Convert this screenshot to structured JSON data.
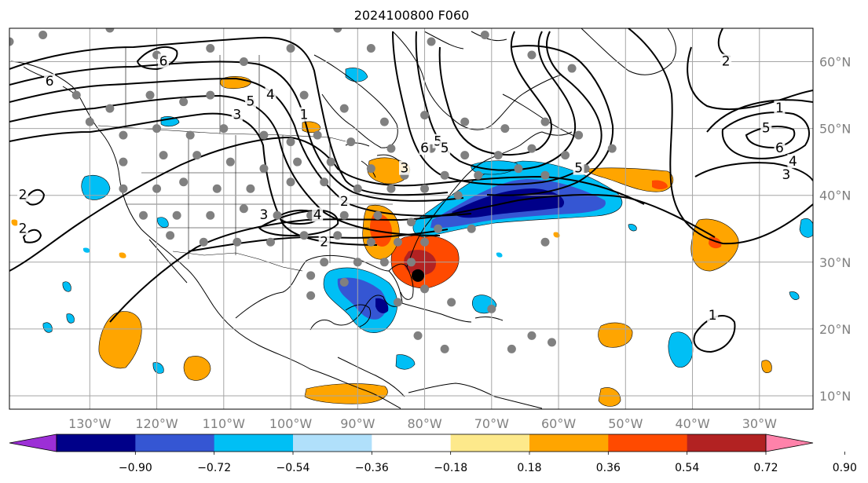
{
  "title": "2024100800 F060",
  "map": {
    "lon_range": [
      -142,
      -22
    ],
    "lat_range": [
      8,
      65
    ],
    "lon_ticks": [
      {
        "value": -130,
        "label": "130°W"
      },
      {
        "value": -120,
        "label": "120°W"
      },
      {
        "value": -110,
        "label": "110°W"
      },
      {
        "value": -100,
        "label": "100°W"
      },
      {
        "value": -90,
        "label": "90°W"
      },
      {
        "value": -80,
        "label": "80°W"
      },
      {
        "value": -70,
        "label": "70°W"
      },
      {
        "value": -60,
        "label": "60°W"
      },
      {
        "value": -50,
        "label": "50°W"
      },
      {
        "value": -40,
        "label": "40°W"
      },
      {
        "value": -30,
        "label": "30°W"
      }
    ],
    "lat_ticks": [
      {
        "value": 10,
        "label": "10°N"
      },
      {
        "value": 20,
        "label": "20°N"
      },
      {
        "value": 30,
        "label": "30°N"
      },
      {
        "value": 40,
        "label": "40°N"
      },
      {
        "value": 50,
        "label": "50°N"
      },
      {
        "value": 60,
        "label": "60°N"
      }
    ],
    "contour_labels": [
      {
        "text": "6",
        "lon": -136,
        "lat": 57
      },
      {
        "text": "6",
        "lon": -119,
        "lat": 60
      },
      {
        "text": "5",
        "lon": -106,
        "lat": 54
      },
      {
        "text": "4",
        "lon": -103,
        "lat": 55
      },
      {
        "text": "3",
        "lon": -108,
        "lat": 52
      },
      {
        "text": "1",
        "lon": -98,
        "lat": 52
      },
      {
        "text": "2",
        "lon": -92,
        "lat": 39
      },
      {
        "text": "3",
        "lon": -104,
        "lat": 37
      },
      {
        "text": "4",
        "lon": -96,
        "lat": 37
      },
      {
        "text": "2",
        "lon": -95,
        "lat": 33
      },
      {
        "text": "2",
        "lon": -140,
        "lat": 40
      },
      {
        "text": "2",
        "lon": -140,
        "lat": 35
      },
      {
        "text": "3",
        "lon": -83,
        "lat": 44
      },
      {
        "text": "6",
        "lon": -80,
        "lat": 47
      },
      {
        "text": "5",
        "lon": -78,
        "lat": 48
      },
      {
        "text": "5",
        "lon": -77,
        "lat": 47
      },
      {
        "text": "2",
        "lon": -35,
        "lat": 60
      },
      {
        "text": "1",
        "lon": -27,
        "lat": 53
      },
      {
        "text": "5",
        "lon": -29,
        "lat": 50
      },
      {
        "text": "6",
        "lon": -27,
        "lat": 47
      },
      {
        "text": "4",
        "lon": -25,
        "lat": 45
      },
      {
        "text": "3",
        "lon": -26,
        "lat": 43
      },
      {
        "text": "1",
        "lon": -37,
        "lat": 22
      },
      {
        "text": "5",
        "lon": -57,
        "lat": 44
      }
    ],
    "obs_points": [
      [
        -142,
        63
      ],
      [
        -137,
        64
      ],
      [
        -127,
        65
      ],
      [
        -120,
        61
      ],
      [
        -112,
        62
      ],
      [
        -107,
        60
      ],
      [
        -100,
        62
      ],
      [
        -93,
        65
      ],
      [
        -88,
        62
      ],
      [
        -79,
        63
      ],
      [
        -71,
        64
      ],
      [
        -64,
        61
      ],
      [
        -58,
        59
      ],
      [
        -132,
        55
      ],
      [
        -127,
        53
      ],
      [
        -121,
        55
      ],
      [
        -116,
        54
      ],
      [
        -112,
        55
      ],
      [
        -106,
        54
      ],
      [
        -98,
        55
      ],
      [
        -92,
        53
      ],
      [
        -86,
        51
      ],
      [
        -80,
        52
      ],
      [
        -74,
        51
      ],
      [
        -68,
        50
      ],
      [
        -62,
        51
      ],
      [
        -57,
        49
      ],
      [
        -52,
        47
      ],
      [
        -130,
        51
      ],
      [
        -125,
        49
      ],
      [
        -120,
        50
      ],
      [
        -115,
        49
      ],
      [
        -110,
        50
      ],
      [
        -104,
        49
      ],
      [
        -100,
        48
      ],
      [
        -96,
        49
      ],
      [
        -91,
        48
      ],
      [
        -85,
        47
      ],
      [
        -79,
        47
      ],
      [
        -74,
        46
      ],
      [
        -69,
        46
      ],
      [
        -64,
        47
      ],
      [
        -59,
        46
      ],
      [
        -56,
        44
      ],
      [
        -125,
        45
      ],
      [
        -119,
        46
      ],
      [
        -114,
        46
      ],
      [
        -109,
        45
      ],
      [
        -104,
        44
      ],
      [
        -99,
        45
      ],
      [
        -94,
        45
      ],
      [
        -88,
        44
      ],
      [
        -83,
        43
      ],
      [
        -77,
        43
      ],
      [
        -72,
        43
      ],
      [
        -66,
        44
      ],
      [
        -62,
        43
      ],
      [
        -125,
        41
      ],
      [
        -120,
        41
      ],
      [
        -116,
        42
      ],
      [
        -111,
        41
      ],
      [
        -106,
        41
      ],
      [
        -100,
        42
      ],
      [
        -95,
        42
      ],
      [
        -90,
        41
      ],
      [
        -85,
        41
      ],
      [
        -80,
        41
      ],
      [
        -75,
        40
      ],
      [
        -122,
        37
      ],
      [
        -117,
        37
      ],
      [
        -112,
        37
      ],
      [
        -107,
        38
      ],
      [
        -102,
        37
      ],
      [
        -97,
        37
      ],
      [
        -92,
        37
      ],
      [
        -87,
        37
      ],
      [
        -82,
        36
      ],
      [
        -78,
        35
      ],
      [
        -118,
        34
      ],
      [
        -113,
        33
      ],
      [
        -108,
        33
      ],
      [
        -103,
        33
      ],
      [
        -98,
        34
      ],
      [
        -93,
        34
      ],
      [
        -88,
        33
      ],
      [
        -84,
        33
      ],
      [
        -80,
        33
      ],
      [
        -95,
        30
      ],
      [
        -90,
        30
      ],
      [
        -86,
        30
      ],
      [
        -82,
        30
      ],
      [
        -97,
        28
      ],
      [
        -92,
        27
      ],
      [
        -97,
        25
      ],
      [
        -84,
        24
      ],
      [
        -80,
        26
      ],
      [
        -76,
        24
      ],
      [
        -70,
        23
      ],
      [
        -64,
        19
      ],
      [
        -81,
        19
      ],
      [
        -77,
        17
      ],
      [
        -67,
        17
      ],
      [
        -61,
        18
      ],
      [
        -73,
        35
      ],
      [
        -62,
        33
      ]
    ],
    "hurricane": [
      -81,
      28
    ],
    "colors": {
      "ocean": "#ffffff",
      "land_outline": "#000000",
      "grid": "#a6a6a6",
      "obs": "#808080",
      "contour": "#000000"
    }
  },
  "colorbar": {
    "colors": [
      "#9c2fd6",
      "#000089",
      "#3556d3",
      "#00bff5",
      "#b0e0fb",
      "#ffffff",
      "#fde98b",
      "#ffa500",
      "#ff4a00",
      "#b22222",
      "#ff82aa"
    ],
    "labels": [
      "−0.90",
      "−0.72",
      "−0.54",
      "−0.36",
      "−0.18",
      "0.18",
      "0.36",
      "0.54",
      "0.72",
      "0.90"
    ]
  }
}
